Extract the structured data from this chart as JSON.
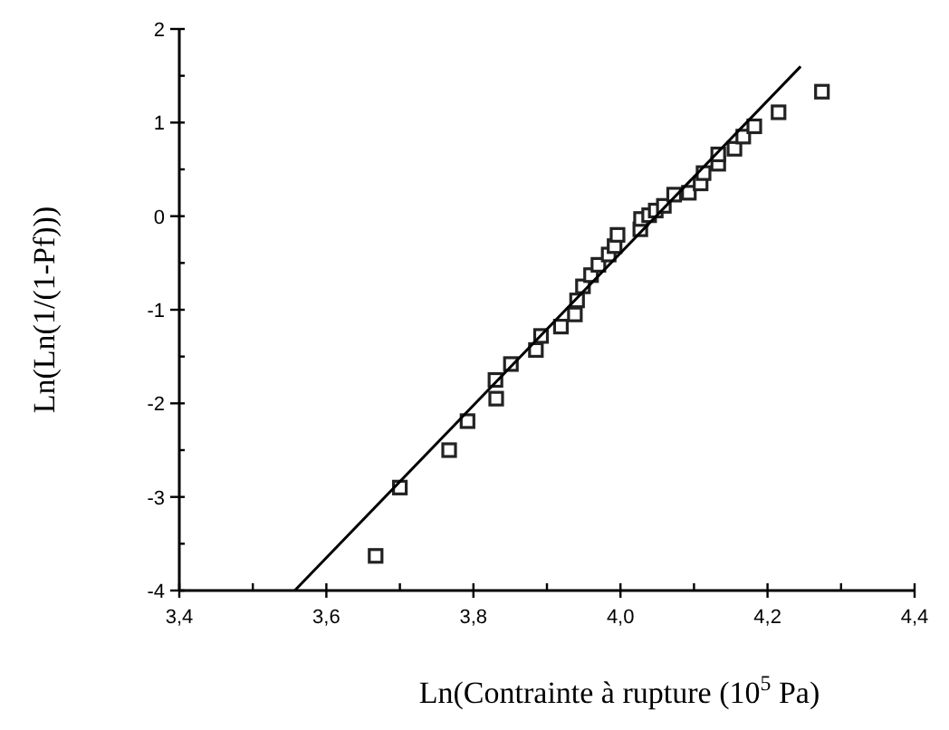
{
  "chart_data": {
    "type": "scatter",
    "xlabel": "Ln(Contrainte à rupture (10$^{5}$ Pa)",
    "ylabel": "Ln(Ln(1/(1-Pf)))",
    "xlim": [
      3.4,
      4.4
    ],
    "ylim": [
      -4,
      2
    ],
    "xticks": [
      {
        "value": 3.4,
        "label": "3,4"
      },
      {
        "value": 3.5,
        "label": null
      },
      {
        "value": 3.6,
        "label": "3,6"
      },
      {
        "value": 3.7,
        "label": null
      },
      {
        "value": 3.8,
        "label": "3,8"
      },
      {
        "value": 3.9,
        "label": null
      },
      {
        "value": 4.0,
        "label": "4,0"
      },
      {
        "value": 4.1,
        "label": null
      },
      {
        "value": 4.2,
        "label": "4,2"
      },
      {
        "value": 4.3,
        "label": null
      },
      {
        "value": 4.4,
        "label": "4,4"
      }
    ],
    "yticks": [
      -4,
      {
        "value": -3.5,
        "label": null
      },
      -3,
      {
        "value": -2.5,
        "label": null
      },
      -2,
      {
        "value": -1.5,
        "label": null
      },
      -1,
      {
        "value": -0.5,
        "label": null
      },
      0,
      {
        "value": 0.5,
        "label": null
      },
      1,
      {
        "value": 1.5,
        "label": null
      },
      2
    ],
    "grid": false,
    "series": [
      {
        "marker": "square",
        "color": "#222222",
        "x": [
          3.667,
          3.7,
          3.767,
          3.792,
          3.831,
          3.83,
          3.851,
          3.885,
          3.892,
          3.919,
          3.938,
          3.941,
          3.949,
          3.96,
          3.97,
          3.984,
          3.992,
          3.996,
          4.027,
          4.028,
          4.039,
          4.048,
          4.059,
          4.073,
          4.093,
          4.109,
          4.113,
          4.133,
          4.133,
          4.155,
          4.167,
          4.182,
          4.215,
          4.274
        ],
        "values": [
          -3.63,
          -2.9,
          -2.5,
          -2.19,
          -1.95,
          -1.75,
          -1.58,
          -1.43,
          -1.28,
          -1.18,
          -1.05,
          -0.9,
          -0.75,
          -0.63,
          -0.52,
          -0.41,
          -0.32,
          -0.2,
          -0.14,
          -0.03,
          0.01,
          0.06,
          0.11,
          0.23,
          0.25,
          0.35,
          0.46,
          0.56,
          0.66,
          0.72,
          0.85,
          0.96,
          1.11,
          1.33
        ]
      },
      {
        "type": "line",
        "marker": "none",
        "line_style": "solid",
        "color": "#000000",
        "x": [
          3.557,
          4.245
        ],
        "values": [
          -4,
          1.6
        ]
      }
    ]
  }
}
